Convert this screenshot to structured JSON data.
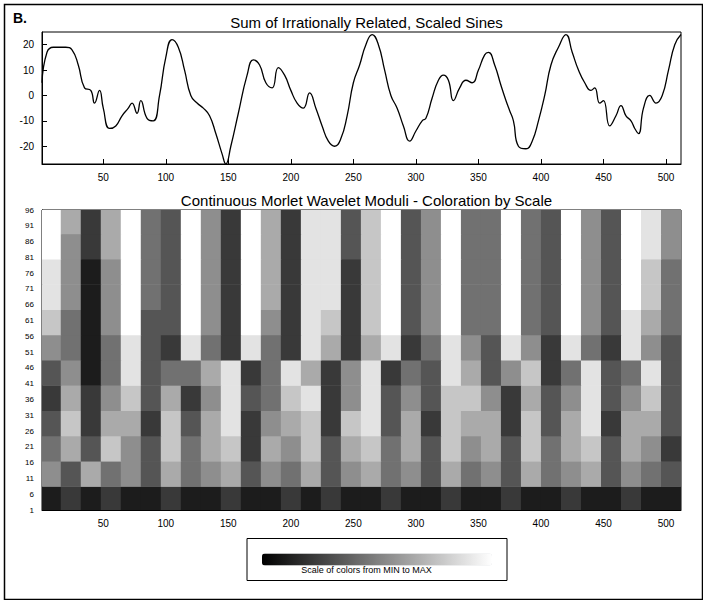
{
  "panel_label": "B.",
  "chart_data": [
    {
      "type": "line",
      "title": "Sum of Irrationally Related, Scaled Sines",
      "x": [
        1,
        5,
        10,
        20,
        25,
        30,
        35,
        40,
        43,
        47,
        50,
        55,
        60,
        65,
        70,
        73,
        77,
        80,
        85,
        90,
        95,
        100,
        105,
        110,
        115,
        120,
        125,
        130,
        135,
        140,
        145,
        148,
        152,
        158,
        165,
        170,
        175,
        180,
        185,
        190,
        195,
        200,
        205,
        210,
        215,
        220,
        225,
        230,
        235,
        240,
        245,
        250,
        255,
        260,
        265,
        270,
        275,
        280,
        285,
        290,
        295,
        300,
        305,
        308,
        313,
        318,
        322,
        326,
        330,
        335,
        340,
        345,
        350,
        355,
        358,
        363,
        368,
        372,
        375,
        378,
        382,
        388,
        393,
        398,
        403,
        408,
        414,
        420,
        425,
        430,
        435,
        440,
        443,
        447,
        450,
        455,
        460,
        464,
        468,
        472,
        475,
        478,
        482,
        487,
        492,
        497,
        502,
        507,
        512
      ],
      "values": [
        5,
        17,
        19,
        19,
        18,
        12,
        3,
        2,
        -3,
        2,
        -5,
        -13,
        -12,
        -8,
        -5,
        -3,
        -7,
        -2,
        -9,
        -10,
        0,
        15,
        22,
        19,
        10,
        0,
        -3,
        -5,
        -8,
        -15,
        -23,
        -27,
        -20,
        -7,
        8,
        14,
        12,
        5,
        3,
        11,
        8,
        2,
        -3,
        -5,
        1,
        -5,
        -12,
        -18,
        -20,
        -17,
        -8,
        5,
        12,
        20,
        24,
        20,
        10,
        0,
        -5,
        -12,
        -18,
        -14,
        -10,
        -9,
        -1,
        6,
        8,
        6,
        -2,
        3,
        6,
        5,
        10,
        16,
        17,
        12,
        4,
        -2,
        -6,
        -10,
        -20,
        -21,
        -18,
        -10,
        0,
        12,
        19,
        24,
        17,
        10,
        5,
        2,
        3,
        -3,
        -2,
        -12,
        -8,
        -4,
        -8,
        -10,
        -13,
        -15,
        -5,
        0,
        -3,
        0,
        10,
        20,
        24
      ],
      "color": "#000000",
      "xlim": [
        1,
        512
      ],
      "xticks": [
        50,
        100,
        150,
        200,
        250,
        300,
        350,
        400,
        450,
        500
      ],
      "ylim": [
        -27,
        25
      ],
      "yticks": [
        -20,
        -10,
        0,
        10,
        20
      ],
      "grid": false
    },
    {
      "type": "heatmap",
      "title": "Continuous Morlet Wavelet Moduli - Coloration by Scale",
      "x": [
        8,
        24,
        40,
        56,
        72,
        88,
        104,
        120,
        136,
        152,
        168,
        184,
        200,
        216,
        232,
        248,
        264,
        280,
        296,
        312,
        328,
        344,
        360,
        376,
        392,
        408,
        424,
        440,
        456,
        472,
        488,
        504
      ],
      "y": [
        4.5,
        12.5,
        20.5,
        28.5,
        36.5,
        44.5,
        52.5,
        60.5,
        68.5,
        76.5,
        84.5,
        92.5
      ],
      "cells": [
        [
          1,
          2,
          1,
          2,
          1,
          1,
          2,
          1,
          1,
          2,
          1,
          1,
          2,
          1,
          2,
          1,
          1,
          2,
          1,
          1,
          2,
          1,
          1,
          2,
          1,
          1,
          2,
          1,
          1,
          2,
          1,
          1
        ],
        [
          5,
          3,
          6,
          4,
          5,
          3,
          6,
          4,
          5,
          6,
          3,
          5,
          4,
          6,
          3,
          5,
          6,
          4,
          5,
          3,
          6,
          4,
          5,
          3,
          6,
          4,
          5,
          6,
          3,
          5,
          4,
          3
        ],
        [
          4,
          6,
          3,
          7,
          5,
          3,
          7,
          4,
          6,
          7,
          2,
          6,
          5,
          7,
          3,
          6,
          7,
          4,
          6,
          3,
          7,
          5,
          6,
          3,
          7,
          4,
          6,
          7,
          3,
          6,
          5,
          2
        ],
        [
          3,
          7,
          2,
          6,
          6,
          2,
          7,
          3,
          6,
          8,
          2,
          5,
          6,
          7,
          2,
          7,
          8,
          3,
          6,
          2,
          7,
          6,
          6,
          2,
          7,
          3,
          6,
          8,
          2,
          6,
          6,
          3
        ],
        [
          2,
          6,
          2,
          5,
          7,
          3,
          6,
          2,
          5,
          8,
          3,
          4,
          7,
          8,
          2,
          5,
          8,
          3,
          5,
          3,
          7,
          7,
          5,
          2,
          6,
          3,
          5,
          8,
          3,
          5,
          7,
          3
        ],
        [
          3,
          5,
          1,
          4,
          8,
          3,
          4,
          4,
          6,
          8,
          2,
          4,
          8,
          6,
          2,
          5,
          8,
          2,
          4,
          3,
          8,
          6,
          3,
          5,
          7,
          2,
          4,
          8,
          3,
          4,
          8,
          3
        ],
        [
          5,
          4,
          1,
          4,
          8,
          3,
          2,
          8,
          4,
          2,
          8,
          4,
          2,
          8,
          6,
          2,
          6,
          8,
          2,
          4,
          8,
          5,
          3,
          8,
          5,
          2,
          8,
          4,
          2,
          8,
          5,
          3
        ],
        [
          7,
          4,
          1,
          5,
          9,
          3,
          3,
          9,
          5,
          2,
          9,
          5,
          2,
          8,
          7,
          2,
          7,
          9,
          3,
          5,
          9,
          4,
          4,
          9,
          4,
          3,
          9,
          5,
          3,
          8,
          6,
          4
        ],
        [
          8,
          5,
          1,
          5,
          9,
          4,
          3,
          9,
          5,
          2,
          9,
          6,
          2,
          8,
          8,
          2,
          7,
          9,
          3,
          5,
          9,
          4,
          4,
          9,
          4,
          3,
          9,
          5,
          3,
          9,
          7,
          4
        ],
        [
          8,
          5,
          1,
          5,
          9,
          4,
          3,
          9,
          5,
          2,
          9,
          6,
          2,
          8,
          8,
          2,
          7,
          9,
          3,
          5,
          9,
          4,
          4,
          9,
          4,
          3,
          9,
          5,
          3,
          9,
          7,
          4
        ],
        [
          9,
          5,
          2,
          6,
          9,
          4,
          3,
          9,
          5,
          2,
          9,
          6,
          2,
          8,
          8,
          3,
          7,
          9,
          3,
          5,
          9,
          4,
          4,
          9,
          4,
          3,
          9,
          5,
          3,
          9,
          8,
          5
        ],
        [
          9,
          6,
          2,
          6,
          9,
          4,
          3,
          9,
          5,
          2,
          9,
          6,
          2,
          8,
          8,
          3,
          7,
          9,
          3,
          5,
          9,
          4,
          4,
          9,
          4,
          3,
          9,
          5,
          3,
          9,
          8,
          5
        ]
      ],
      "color_range": [
        0,
        9
      ],
      "colorbar_label": "Scale of colors from MIN to MAX",
      "xlim": [
        1,
        512
      ],
      "xticks": [
        50,
        100,
        150,
        200,
        250,
        300,
        350,
        400,
        450,
        500
      ],
      "ylim": [
        1,
        96
      ],
      "yticks": [
        1,
        6,
        11,
        16,
        21,
        26,
        31,
        36,
        41,
        46,
        51,
        56,
        61,
        66,
        71,
        76,
        81,
        86,
        91,
        96
      ],
      "grid": false
    }
  ]
}
